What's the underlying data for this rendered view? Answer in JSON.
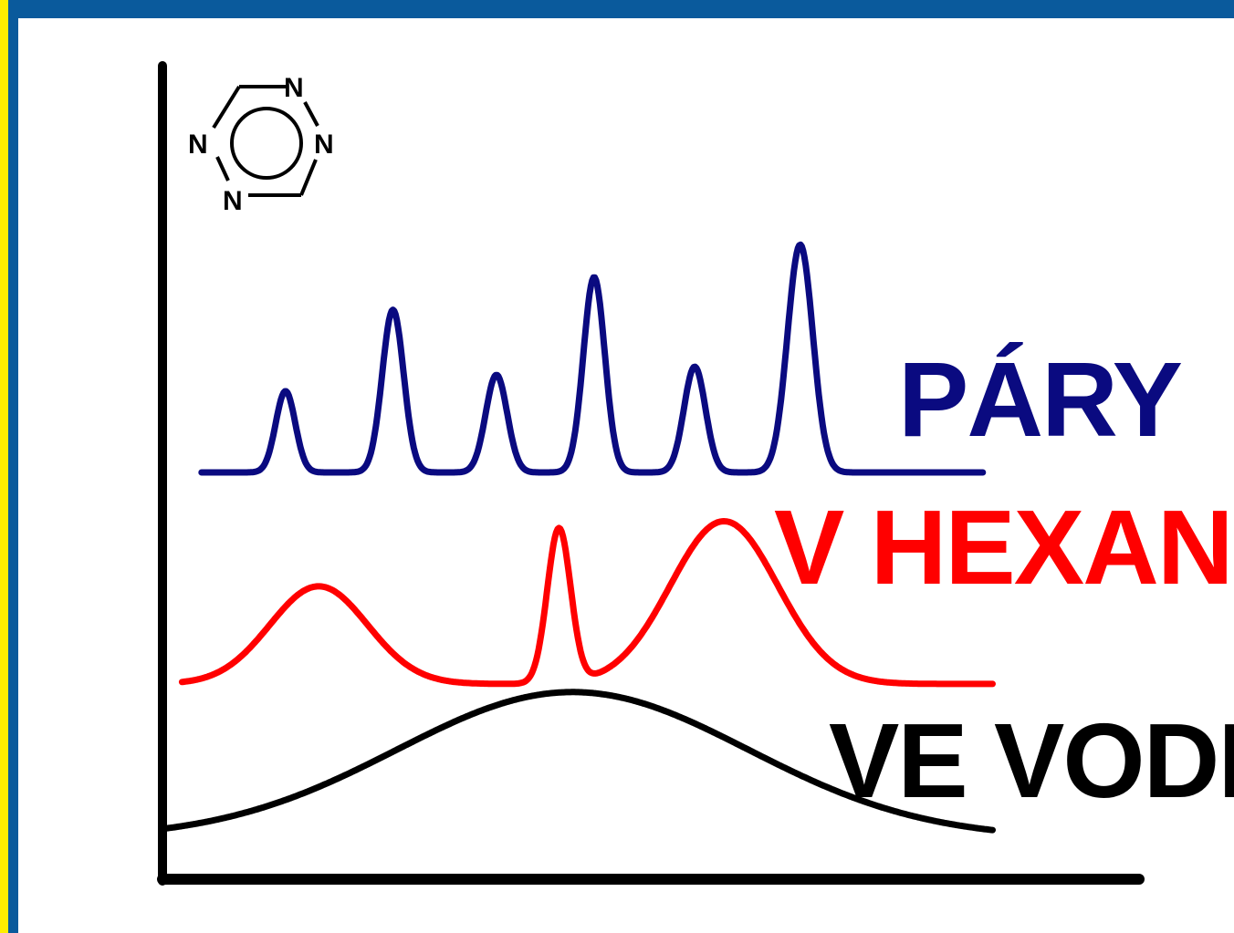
{
  "colors": {
    "frame": "#0a5a9c",
    "accent_strip": "#ffee00",
    "background": "#ffffff",
    "axis": "#000000"
  },
  "molecule": {
    "icon": "tetrazine-ring-icon",
    "atoms": [
      "N",
      "N",
      "N",
      "N"
    ]
  },
  "chart_data": {
    "type": "line",
    "title": "",
    "xlabel": "",
    "ylabel": "",
    "grid": false,
    "series": [
      {
        "name": "PÁRY",
        "color": "#0a0a80",
        "baseline": 0.5,
        "peaks": [
          {
            "x": 0.126,
            "h": 0.1,
            "w": 0.01
          },
          {
            "x": 0.236,
            "h": 0.2,
            "w": 0.011
          },
          {
            "x": 0.342,
            "h": 0.12,
            "w": 0.011
          },
          {
            "x": 0.442,
            "h": 0.24,
            "w": 0.011
          },
          {
            "x": 0.545,
            "h": 0.13,
            "w": 0.011
          },
          {
            "x": 0.653,
            "h": 0.28,
            "w": 0.013
          }
        ]
      },
      {
        "name": "V HEXANU",
        "color": "#ff0000",
        "baseline": 0.24,
        "peaks": [
          {
            "x": 0.16,
            "h": 0.12,
            "w": 0.05
          },
          {
            "x": 0.406,
            "h": 0.19,
            "w": 0.012
          },
          {
            "x": 0.575,
            "h": 0.2,
            "w": 0.055
          }
        ]
      },
      {
        "name": "VE VODĚ",
        "color": "#000000",
        "baseline": 0.05,
        "peaks": [
          {
            "x": 0.42,
            "h": 0.18,
            "w": 0.18
          }
        ]
      }
    ]
  }
}
